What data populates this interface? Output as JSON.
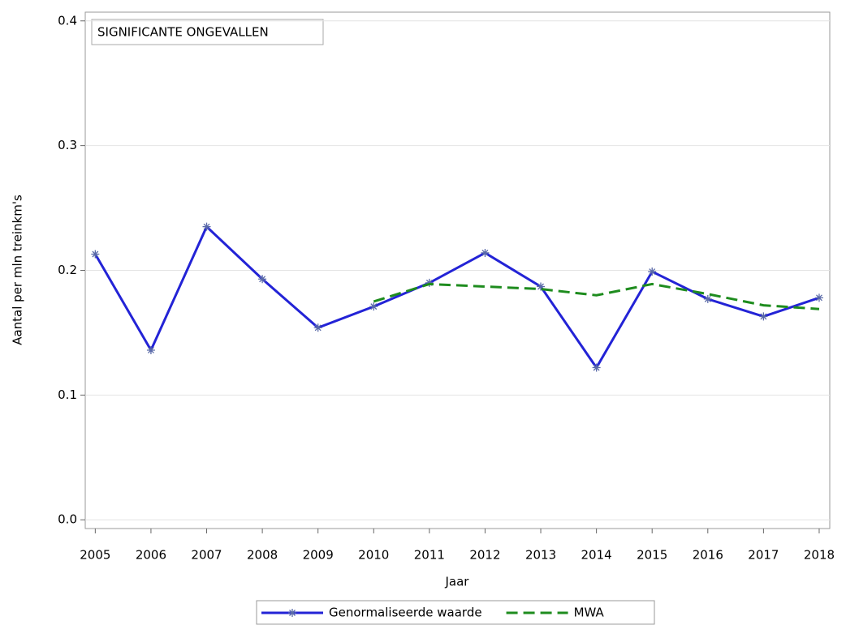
{
  "chart_data": {
    "type": "line",
    "annotation": "SIGNIFICANTE ONGEVALLEN",
    "x_label": "Jaar",
    "y_label": "Aantal per mln treinkm's",
    "x": [
      2005,
      2006,
      2007,
      2008,
      2009,
      2010,
      2011,
      2012,
      2013,
      2014,
      2015,
      2016,
      2017,
      2018
    ],
    "series": [
      {
        "name": "Genormaliseerde waarde",
        "color": "#2323d6",
        "dash": false,
        "marker": true,
        "values": [
          0.213,
          0.136,
          0.235,
          0.193,
          0.154,
          0.171,
          0.19,
          0.214,
          0.187,
          0.122,
          0.199,
          0.177,
          0.163,
          0.178
        ]
      },
      {
        "name": "MWA",
        "color": "#1e8c1e",
        "dash": true,
        "marker": false,
        "values": [
          null,
          null,
          null,
          null,
          null,
          0.175,
          0.189,
          0.187,
          0.185,
          0.18,
          0.189,
          0.181,
          0.172,
          0.169
        ]
      }
    ],
    "xlim": [
      2004.82,
      2018.19
    ],
    "xticks": [
      2005,
      2006,
      2007,
      2008,
      2009,
      2010,
      2011,
      2012,
      2013,
      2014,
      2015,
      2016,
      2017,
      2018
    ],
    "ylim": [
      -0.007,
      0.407
    ],
    "yticks": [
      {
        "value": 0,
        "label": "0.0"
      },
      0.1,
      0.2,
      0.3,
      0.4
    ],
    "grid": true,
    "legend": "bottom"
  }
}
